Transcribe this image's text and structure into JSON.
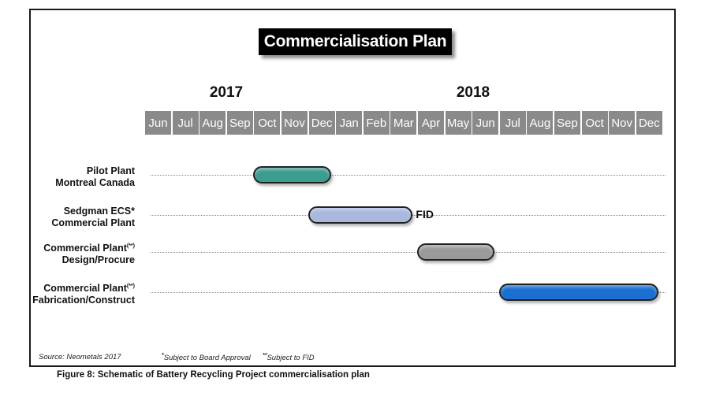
{
  "title": "Commercialisation Plan",
  "years": [
    "2017",
    "2018"
  ],
  "months": [
    "Jun",
    "Jul",
    "Aug",
    "Sep",
    "Oct",
    "Nov",
    "Dec",
    "Jan",
    "Feb",
    "Mar",
    "Apr",
    "May",
    "Jun",
    "Jul",
    "Aug",
    "Sep",
    "Oct",
    "Nov",
    "Dec"
  ],
  "rows": [
    {
      "line1": "Pilot Plant",
      "line1_sup": "",
      "line2": "Montreal Canada",
      "start_month": 4,
      "end_month": 6,
      "color": "#3a9d8d",
      "marker": ""
    },
    {
      "line1": "Sedgman ECS*",
      "line1_sup": "",
      "line2": "Commercial Plant",
      "start_month": 6,
      "end_month": 9,
      "color": "#a9b8dd",
      "marker": "FID"
    },
    {
      "line1": "Commercial Plant",
      "line1_sup": "(**)",
      "line2": "Design/Procure",
      "start_month": 10,
      "end_month": 12,
      "color": "#9a9a9a",
      "marker": ""
    },
    {
      "line1": "Commercial Plant",
      "line1_sup": "(**)",
      "line2": "Fabrication/Construct",
      "start_month": 13,
      "end_month": 18,
      "color": "#1a6fd0",
      "marker": ""
    }
  ],
  "footnotes": {
    "source": "Source:  Neometals 2017",
    "note1_mark": "*",
    "note1": "Subject to Board Approval",
    "note2_mark": "**",
    "note2": "Subject to FID"
  },
  "caption": "Figure 8: Schematic of Battery Recycling Project commercialisation plan"
}
